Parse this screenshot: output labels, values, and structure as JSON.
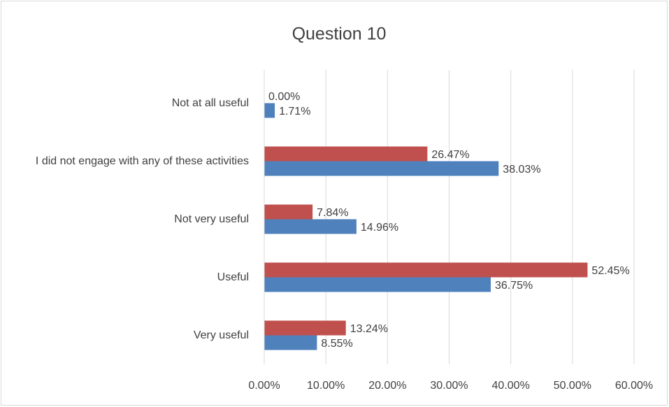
{
  "chart_data": {
    "type": "bar",
    "horizontal": true,
    "title": "Question 10",
    "categories": [
      "Not at all useful",
      "I did not engage with any of these activities",
      "Not very useful",
      "Useful",
      "Very useful"
    ],
    "series": [
      {
        "color": "#c0504d",
        "values": [
          0,
          26.47,
          7.84,
          52.45,
          13.24
        ],
        "value_labels": [
          "0.00%",
          "26.47%",
          "7.84%",
          "52.45%",
          "13.24%"
        ]
      },
      {
        "color": "#4f81bd",
        "values": [
          1.71,
          38.03,
          14.96,
          36.75,
          8.55
        ],
        "value_labels": [
          "1.71%",
          "38.03%",
          "14.96%",
          "36.75%",
          "8.55%"
        ]
      }
    ],
    "xlim": [
      0,
      60
    ],
    "xticks": [
      {
        "value": 0,
        "label": "0.00%"
      },
      {
        "value": 10,
        "label": "10.00%"
      },
      {
        "value": 20,
        "label": "20.00%"
      },
      {
        "value": 30,
        "label": "30.00%"
      },
      {
        "value": 40,
        "label": "40.00%"
      },
      {
        "value": 50,
        "label": "50.00%"
      },
      {
        "value": 60,
        "label": "60.00%"
      }
    ],
    "grid": true
  }
}
